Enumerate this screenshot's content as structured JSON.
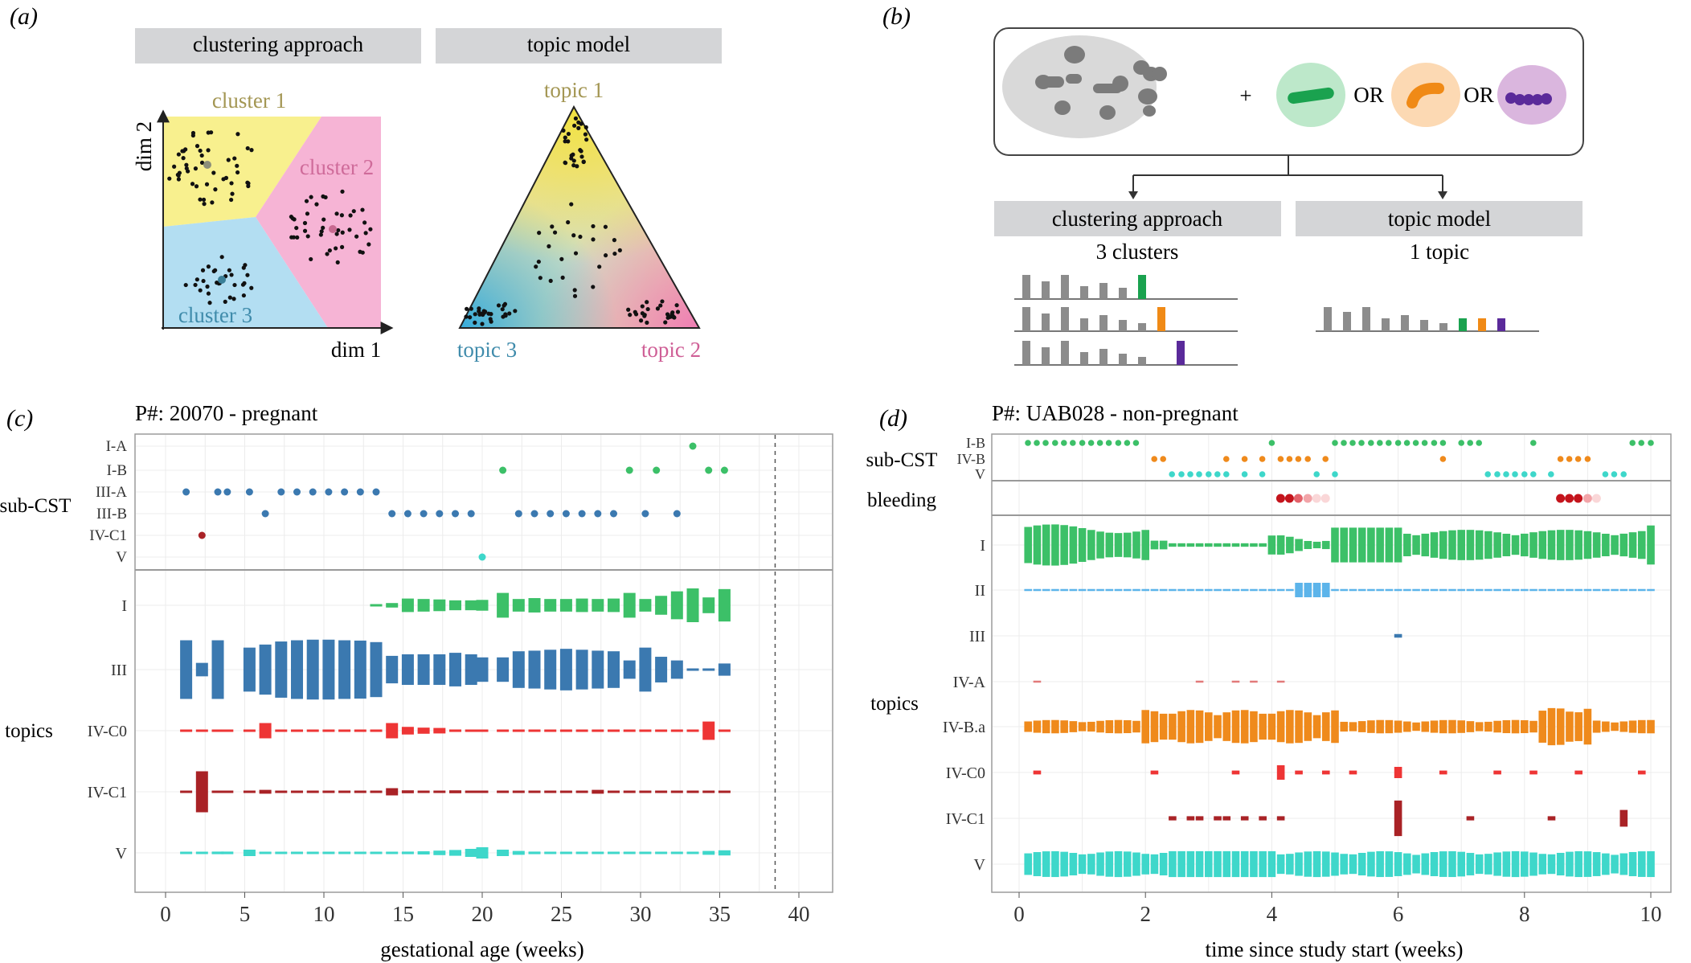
{
  "panel_a": {
    "tag": "(a)",
    "header_cluster": "clustering approach",
    "header_topic": "topic model",
    "cluster1": "cluster 1",
    "cluster2": "cluster 2",
    "cluster3": "cluster 3",
    "dim1": "dim 1",
    "dim2": "dim 2",
    "topic1": "topic 1",
    "topic2": "topic 2",
    "topic3": "topic 3"
  },
  "panel_b": {
    "tag": "(b)",
    "plus": "+",
    "or1": "OR",
    "or2": "OR",
    "header_cluster": "clustering approach",
    "header_topic": "topic model",
    "cluster_caption": "3 clusters",
    "topic_caption": "1 topic"
  },
  "colors": {
    "I": "#3CC068",
    "II": "#5CB4EA",
    "III": "#3B79B0",
    "IV-A": "#E27A7A",
    "IV-B": "#EF8A1C",
    "IV-C0": "#EE3535",
    "IV-C1": "#A92226",
    "V": "#3ED7CA"
  },
  "chart_data": [
    {
      "panel": "(c)",
      "type": "scatter",
      "title": "P#: 20070 - pregnant",
      "xlabel": "gestational age (weeks)",
      "xticks": [
        0,
        5,
        10,
        15,
        20,
        25,
        30,
        35,
        40
      ],
      "xlim": [
        -2,
        42
      ],
      "dashed_line_x": 38.5,
      "subcst_label": "sub-CST",
      "topics_label": "topics",
      "subcst_categories": [
        "I-A",
        "I-B",
        "III-A",
        "III-B",
        "IV-C1",
        "V"
      ],
      "subcst_points": [
        {
          "cat": "III-A",
          "x": [
            1.3,
            3.3,
            3.9,
            5.3,
            7.3,
            8.3,
            9.3,
            10.3,
            11.3,
            12.3,
            13.3
          ]
        },
        {
          "cat": "III-B",
          "x": [
            6.3,
            14.3,
            15.3,
            16.3,
            17.3,
            18.3,
            19.3,
            22.3,
            23.3,
            24.3,
            25.3,
            26.3,
            27.3,
            28.3,
            30.3,
            32.3
          ]
        },
        {
          "cat": "IV-C1",
          "x": [
            2.3
          ]
        },
        {
          "cat": "V",
          "x": [
            20.0
          ]
        },
        {
          "cat": "I-B",
          "x": [
            21.3,
            29.3,
            31.0,
            34.3,
            35.3
          ]
        },
        {
          "cat": "I-A",
          "x": [
            33.3
          ]
        }
      ],
      "topic_categories": [
        "I",
        "III",
        "IV-C0",
        "IV-C1",
        "V"
      ],
      "topic_proportions": {
        "x": [
          1.3,
          2.3,
          3.3,
          3.9,
          5.3,
          6.3,
          7.3,
          8.3,
          9.3,
          10.3,
          11.3,
          12.3,
          13.3,
          14.3,
          15.3,
          16.3,
          17.3,
          18.3,
          19.3,
          20.0,
          21.3,
          22.3,
          23.3,
          24.3,
          25.3,
          26.3,
          27.3,
          28.3,
          29.3,
          30.3,
          31.3,
          32.3,
          33.3,
          34.3,
          35.3
        ],
        "I": [
          0,
          0,
          0,
          0,
          0,
          0,
          0,
          0,
          0,
          0,
          0,
          0,
          0.02,
          0.1,
          0.3,
          0.28,
          0.26,
          0.22,
          0.22,
          0.24,
          0.55,
          0.28,
          0.32,
          0.28,
          0.28,
          0.3,
          0.28,
          0.3,
          0.55,
          0.28,
          0.42,
          0.62,
          0.75,
          0.35,
          0.72
        ],
        "III": [
          0.96,
          0.22,
          0.96,
          0,
          0.72,
          0.82,
          0.92,
          0.96,
          0.98,
          0.98,
          0.96,
          0.95,
          0.9,
          0.45,
          0.5,
          0.5,
          0.5,
          0.55,
          0.5,
          0.4,
          0.4,
          0.6,
          0.62,
          0.65,
          0.68,
          0.65,
          0.62,
          0.6,
          0.3,
          0.72,
          0.42,
          0.3,
          0.02,
          0.02,
          0.2
        ],
        "IV-C0": [
          0.05,
          0.05,
          0.06,
          0.06,
          0.04,
          0.5,
          0.03,
          0.03,
          0.03,
          0.03,
          0.03,
          0.03,
          0.03,
          0.5,
          0.25,
          0.2,
          0.18,
          0.08,
          0.07,
          0.07,
          0.05,
          0.05,
          0.04,
          0.04,
          0.04,
          0.03,
          0.05,
          0.04,
          0.05,
          0.03,
          0.03,
          0.05,
          0.06,
          0.6,
          0.03
        ],
        "IV-C1": [
          0.02,
          0.85,
          0.02,
          0.02,
          0.02,
          0.08,
          0.02,
          0.02,
          0.02,
          0.02,
          0.02,
          0.02,
          0.02,
          0.15,
          0.06,
          0.02,
          0.02,
          0.06,
          0.02,
          0.02,
          0.02,
          0.02,
          0.02,
          0.02,
          0.02,
          0.02,
          0.08,
          0.02,
          0.02,
          0.02,
          0.02,
          0.02,
          0.02,
          0.02,
          0.02
        ],
        "V": [
          0.06,
          0.06,
          0.08,
          0.08,
          0.2,
          0.06,
          0.06,
          0.06,
          0.06,
          0.06,
          0.06,
          0.06,
          0.06,
          0.06,
          0.08,
          0.1,
          0.14,
          0.18,
          0.25,
          0.35,
          0.2,
          0.12,
          0.08,
          0.06,
          0.06,
          0.06,
          0.06,
          0.06,
          0.06,
          0.06,
          0.06,
          0.06,
          0.06,
          0.12,
          0.16
        ]
      }
    },
    {
      "panel": "(d)",
      "type": "scatter",
      "title": "P#: UAB028 - non-pregnant",
      "xlabel": "time since study start (weeks)",
      "xticks": [
        0,
        2,
        4,
        6,
        8,
        10
      ],
      "xlim": [
        -0.2,
        10.4
      ],
      "subcst_label": "sub-CST",
      "bleeding_label": "bleeding",
      "topics_label": "topics",
      "subcst_categories": [
        "I-B",
        "IV-B",
        "V"
      ],
      "subcst_points": [
        {
          "cat": "I-B",
          "x": [
            0.14,
            0.28,
            0.42,
            0.57,
            0.71,
            0.85,
            1.0,
            1.14,
            1.28,
            1.42,
            1.57,
            1.71,
            1.85,
            4.0,
            5.0,
            5.14,
            5.28,
            5.42,
            5.57,
            5.71,
            5.85,
            6.0,
            6.14,
            6.28,
            6.42,
            6.57,
            6.71,
            7.0,
            7.14,
            7.28,
            8.14,
            9.71,
            9.85,
            10.0
          ]
        },
        {
          "cat": "IV-B",
          "x": [
            2.14,
            2.28,
            3.28,
            3.57,
            3.85,
            4.14,
            4.28,
            4.42,
            4.57,
            4.85,
            6.71,
            8.57,
            8.71,
            8.85,
            9.0
          ]
        },
        {
          "cat": "V",
          "x": [
            2.42,
            2.57,
            2.71,
            2.85,
            3.0,
            3.14,
            3.28,
            3.57,
            3.85,
            4.71,
            5.0,
            7.42,
            7.57,
            7.71,
            7.85,
            8.0,
            8.14,
            8.42,
            9.28,
            9.42,
            9.57
          ]
        }
      ],
      "bleeding_days": {
        "x": [
          4.14,
          4.28,
          4.42,
          4.57,
          4.71,
          4.85,
          8.57,
          8.71,
          8.85,
          9.0,
          9.14
        ],
        "intensity": [
          1.0,
          1.0,
          0.7,
          0.4,
          0.2,
          0.1,
          1.0,
          1.0,
          1.0,
          0.3,
          0.15
        ]
      },
      "topic_categories": [
        "I",
        "II",
        "III",
        "IV-A",
        "IV-B.a",
        "IV-C0",
        "IV-C1",
        "V"
      ],
      "topic_profiles": {
        "I": "high days 0-2, low 2-4, high 4-6, medium-high 6-10",
        "II": "low throughout, peak near week 4.6",
        "III": "near zero, one small mark at week 6",
        "IV-A": "sparse small marks",
        "IV-B.a": "medium throughout, higher weeks 2-5 and 8-9",
        "IV-C0": "sparse small marks, larger at 4.2 and 6",
        "IV-C1": "sparse small marks, large at week 6 and 9.6",
        "V": "medium throughout"
      }
    }
  ]
}
